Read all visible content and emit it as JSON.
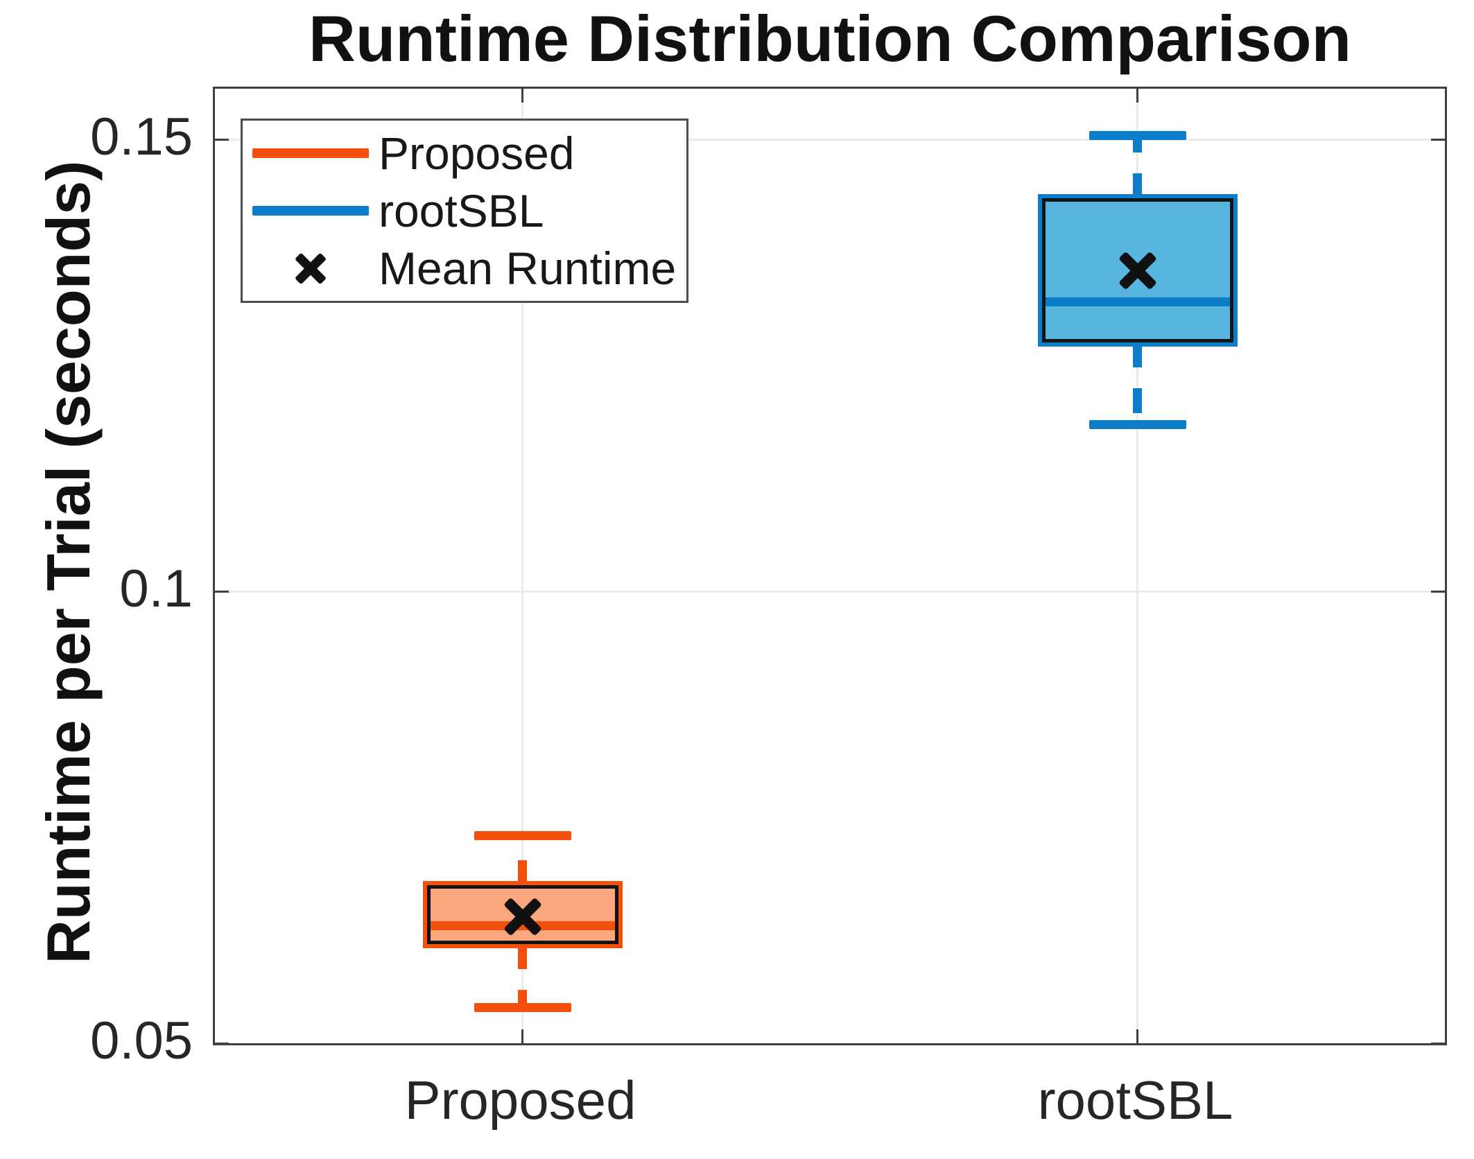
{
  "title": "Runtime Distribution Comparison",
  "axes": {
    "ylabel": "Runtime per Trial (seconds)",
    "ylim": [
      0.05,
      0.1556
    ],
    "yticks": [
      {
        "value": 0.05,
        "label": "0.05"
      },
      {
        "value": 0.1,
        "label": "0.1"
      },
      {
        "value": 0.15,
        "label": "0.15"
      }
    ],
    "grid": true
  },
  "legend": {
    "items": [
      {
        "label": "Proposed",
        "swatch": "line-swatch",
        "color": "#f3500e"
      },
      {
        "label": "rootSBL",
        "swatch": "line-swatch",
        "color": "#0b7dc9"
      },
      {
        "label": "Mean Runtime",
        "swatch": "x-mark-swatch",
        "color": "#111111"
      }
    ]
  },
  "chart_data": {
    "type": "boxplot",
    "title": "Runtime Distribution Comparison",
    "xlabel": "",
    "ylabel": "Runtime per Trial (seconds)",
    "ylim": [
      0.05,
      0.1556
    ],
    "yticks": [
      0.05,
      0.1,
      0.15
    ],
    "grid": "on",
    "legend_position": "northwest",
    "categories": [
      "Proposed",
      "rootSBL"
    ],
    "series": [
      {
        "name": "Proposed",
        "x_fraction": 0.25,
        "line_color": "#f3500e",
        "fill_color": "#fba77e",
        "edge_color": "#141414",
        "whisker_low": 0.054,
        "q1": 0.061,
        "median": 0.063,
        "mean": 0.064,
        "q3": 0.0675,
        "whisker_high": 0.073
      },
      {
        "name": "rootSBL",
        "x_fraction": 0.75,
        "line_color": "#0b7dc9",
        "fill_color": "#58b5df",
        "edge_color": "#141414",
        "whisker_low": 0.1185,
        "q1": 0.1275,
        "median": 0.132,
        "mean": 0.1355,
        "q3": 0.1435,
        "whisker_high": 0.1505
      }
    ]
  }
}
